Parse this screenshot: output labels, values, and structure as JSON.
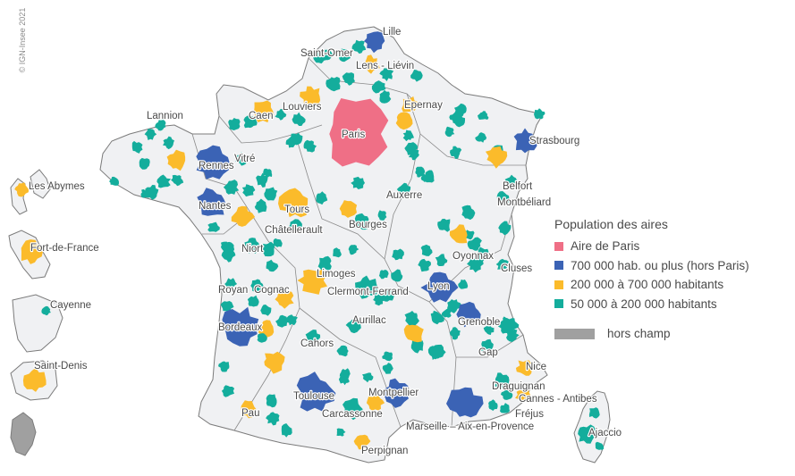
{
  "copyright": "© IGN-Insee 2021",
  "colors": {
    "land": "#f0f1f3",
    "border": "#7b7b7b",
    "hors_champ": "#a0a0a0",
    "paris": "#ef6f86",
    "large": "#3b63b5",
    "medium": "#fbbb2b",
    "small": "#14ad9c"
  },
  "legend": {
    "title": "Population des aires",
    "items": [
      {
        "label": "Aire de Paris",
        "color": "#ef6f86"
      },
      {
        "label": "700 000 hab. ou plus (hors Paris)",
        "color": "#3b63b5"
      },
      {
        "label": "200 000 à 700 000 habitants",
        "color": "#fbbb2b"
      },
      {
        "label": "50 000 à 200 000 habitants",
        "color": "#14ad9c"
      }
    ],
    "hors_champ": "hors champ"
  },
  "cities": [
    {
      "name": "Lille"
    },
    {
      "name": "Saint-Omer"
    },
    {
      "name": "Lens - Liévin"
    },
    {
      "name": "Louviers"
    },
    {
      "name": "Epernay"
    },
    {
      "name": "Caen"
    },
    {
      "name": "Lannion"
    },
    {
      "name": "Paris"
    },
    {
      "name": "Strasbourg"
    },
    {
      "name": "Vitré"
    },
    {
      "name": "Rennes"
    },
    {
      "name": "Nantes"
    },
    {
      "name": "Tours"
    },
    {
      "name": "Auxerre"
    },
    {
      "name": "Belfort"
    },
    {
      "name": "Montbéliard"
    },
    {
      "name": "Châtellerault"
    },
    {
      "name": "Bourges"
    },
    {
      "name": "Niort"
    },
    {
      "name": "Oyonnax"
    },
    {
      "name": "Cluses"
    },
    {
      "name": "Limoges"
    },
    {
      "name": "Royan"
    },
    {
      "name": "Cognac"
    },
    {
      "name": "Clermont-Ferrand"
    },
    {
      "name": "Lyon"
    },
    {
      "name": "Grenoble"
    },
    {
      "name": "Aurillac"
    },
    {
      "name": "Bordeaux"
    },
    {
      "name": "Cahors"
    },
    {
      "name": "Gap"
    },
    {
      "name": "Nice"
    },
    {
      "name": "Draguignan"
    },
    {
      "name": "Toulouse"
    },
    {
      "name": "Montpellier"
    },
    {
      "name": "Cannes - Antibes"
    },
    {
      "name": "Fréjus"
    },
    {
      "name": "Pau"
    },
    {
      "name": "Carcassonne"
    },
    {
      "name": "Marseille – Aix-en-Provence"
    },
    {
      "name": "Ajaccio"
    },
    {
      "name": "Perpignan"
    },
    {
      "name": "Les Abymes"
    },
    {
      "name": "Fort-de-France"
    },
    {
      "name": "Cayenne"
    },
    {
      "name": "Saint-Denis"
    }
  ]
}
